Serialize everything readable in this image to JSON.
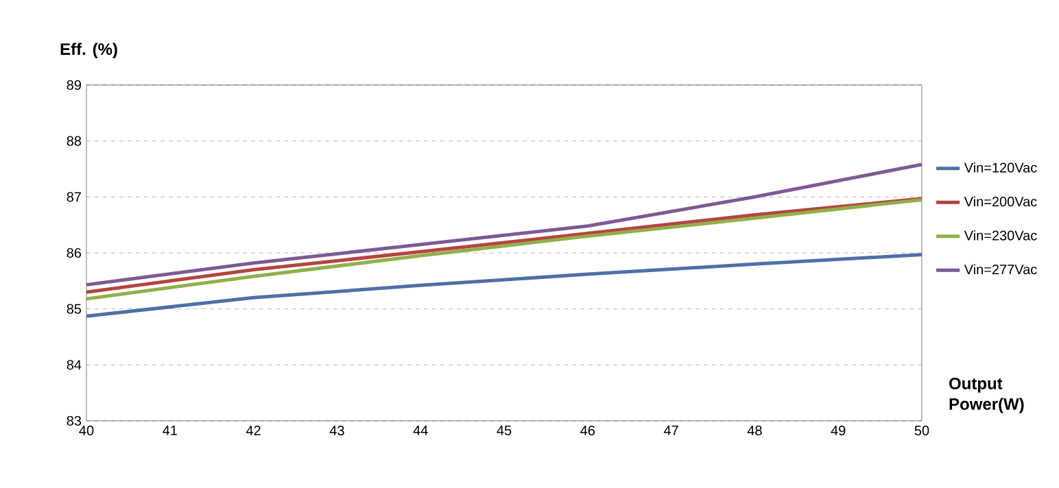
{
  "chart_data": {
    "type": "line",
    "xlabel": "Output Power(W)",
    "ylabel": "Eff. (%)",
    "x": [
      40,
      42,
      44,
      46,
      48,
      50
    ],
    "xlim": [
      40,
      50
    ],
    "xticks": [
      40,
      41,
      42,
      43,
      44,
      45,
      46,
      47,
      48,
      49,
      50
    ],
    "ylim": [
      83,
      89
    ],
    "yticks": [
      83,
      84,
      85,
      86,
      87,
      88,
      89
    ],
    "grid": "y",
    "legend": "right",
    "marker": "none",
    "line_style": "solid",
    "series": [
      {
        "name": "Vin=120Vac",
        "color": "#4f6fa8",
        "values": [
          84.87,
          85.2,
          85.42,
          85.62,
          85.8,
          85.97
        ]
      },
      {
        "name": "Vin=200Vac",
        "color": "#b5443e",
        "values": [
          85.3,
          85.7,
          86.02,
          86.35,
          86.68,
          86.97
        ]
      },
      {
        "name": "Vin=230Vac",
        "color": "#8fb04a",
        "values": [
          85.18,
          85.58,
          85.95,
          86.3,
          86.62,
          86.95
        ]
      },
      {
        "name": "Vin=277Vac",
        "color": "#7d5a94",
        "values": [
          85.43,
          85.82,
          86.15,
          86.48,
          87.0,
          87.58
        ]
      }
    ]
  }
}
